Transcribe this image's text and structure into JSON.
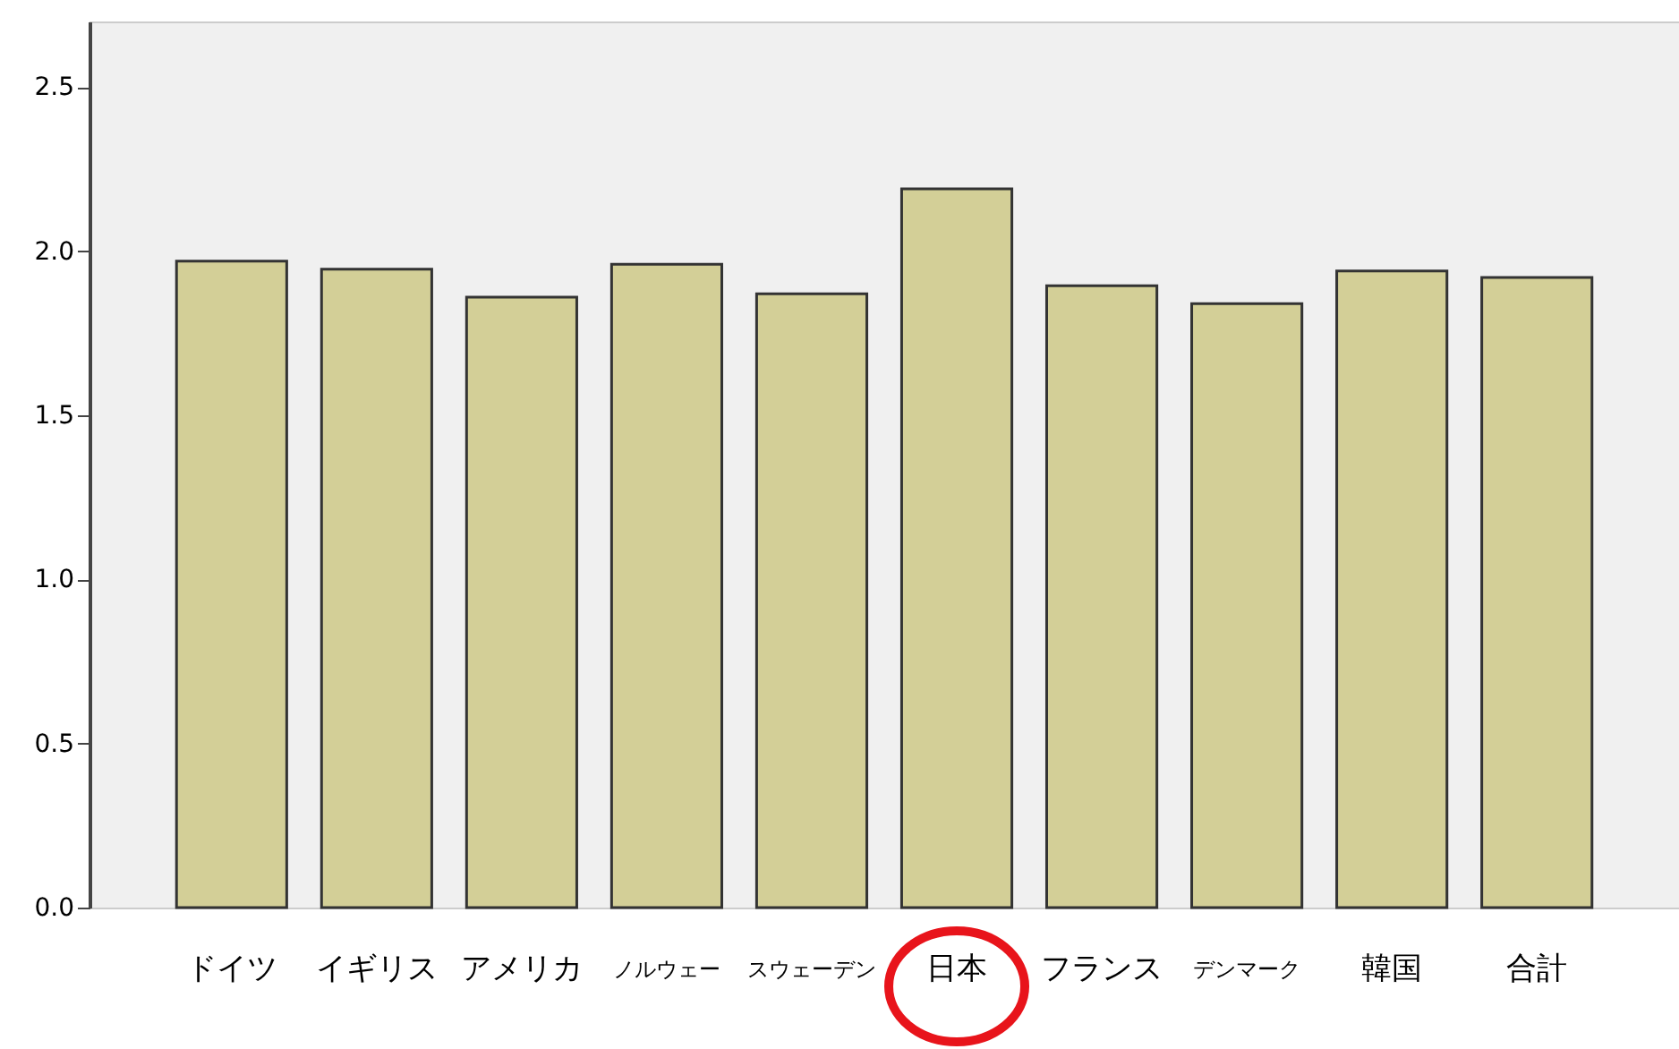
{
  "chart_data": {
    "type": "bar",
    "categories": [
      "ドイツ",
      "イギリス",
      "アメリカ",
      "ノルウェー",
      "スウェーデン",
      "日本",
      "フランス",
      "デンマーク",
      "韓国",
      "合計"
    ],
    "values": [
      1.97,
      1.945,
      1.86,
      1.96,
      1.87,
      2.19,
      1.895,
      1.84,
      1.94,
      1.92
    ],
    "color": "#d3cf97",
    "ylim": [
      0,
      2.7
    ],
    "yticks": [
      {
        "value": 0,
        "label": "0.0"
      },
      0.5,
      {
        "value": 1,
        "label": "1.0"
      },
      1.5,
      {
        "value": 2,
        "label": "2.0"
      },
      2.5
    ],
    "grid": false
  }
}
